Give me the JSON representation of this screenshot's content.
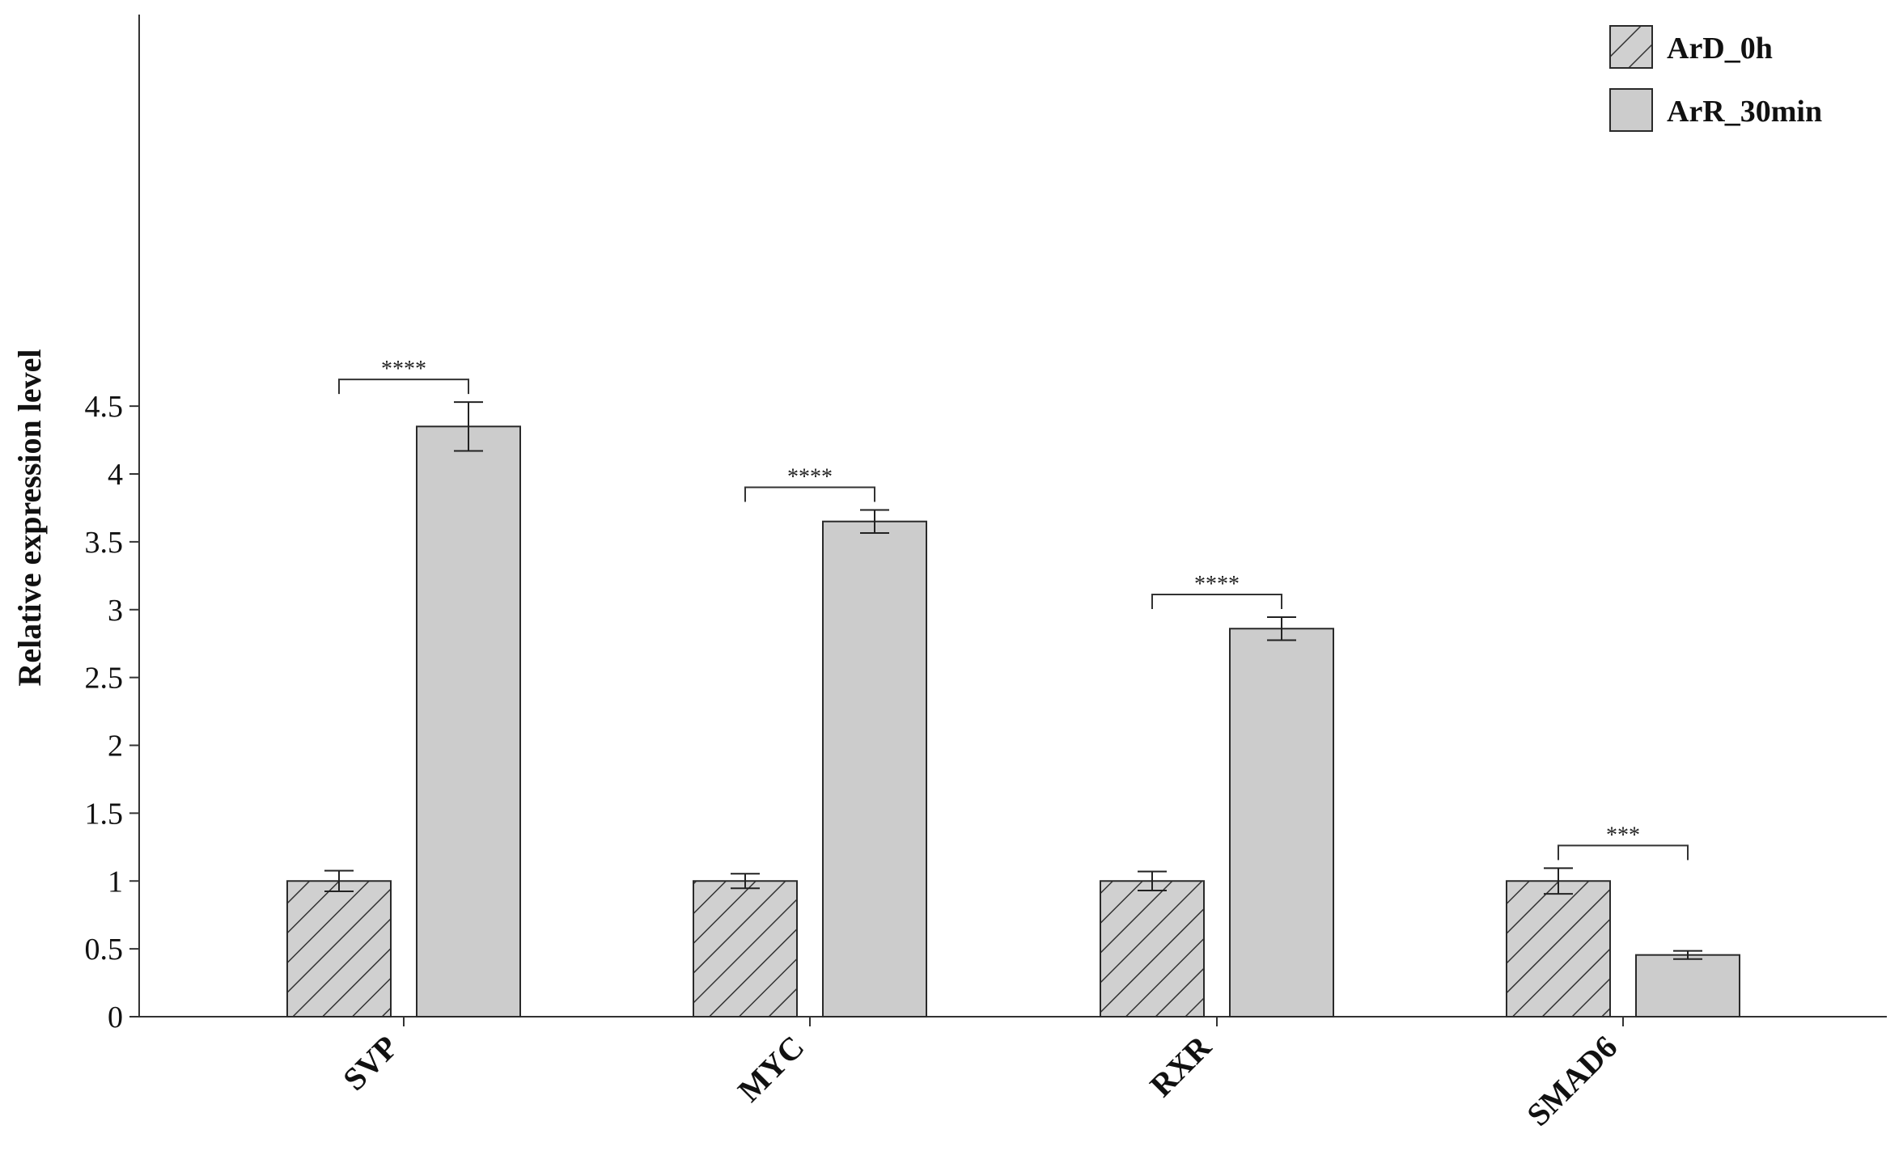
{
  "chart_data": {
    "type": "bar",
    "title": "",
    "xlabel": "",
    "ylabel": "Relative expression level",
    "ylim": [
      0,
      4.9
    ],
    "yticks": [
      0,
      0.5,
      1,
      1.5,
      2,
      2.5,
      3,
      3.5,
      4,
      4.5
    ],
    "ytick_labels": [
      "0",
      "0.5",
      "1",
      "1.5",
      "2",
      "2.5",
      "3",
      "3.5",
      "4",
      "4.5"
    ],
    "grid": false,
    "legend_position": "top-right",
    "categories": [
      "SVP",
      "MYC",
      "RXR",
      "SMAD6"
    ],
    "series": [
      {
        "name": "ArD_0h",
        "pattern": "hatched",
        "fill": "#d0d0d0",
        "hatch_color": "#333333",
        "values": [
          1.0,
          1.0,
          1.0,
          1.0
        ],
        "errors": [
          0.076,
          0.054,
          0.07,
          0.095
        ]
      },
      {
        "name": "ArR_30min",
        "pattern": "solid",
        "fill": "#cccccc",
        "values": [
          4.35,
          3.65,
          2.86,
          0.455
        ],
        "errors": [
          0.18,
          0.085,
          0.085,
          0.03
        ]
      }
    ],
    "significance": [
      "****",
      "****",
      "****",
      "***"
    ]
  }
}
